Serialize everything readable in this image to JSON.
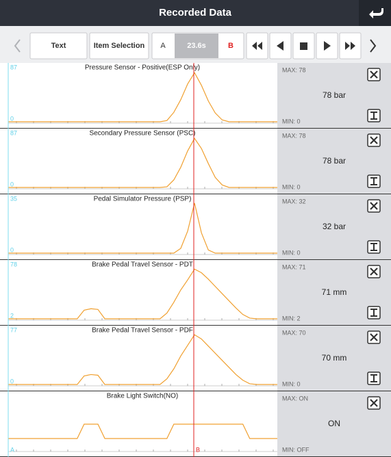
{
  "header": {
    "title": "Recorded Data"
  },
  "toolbar": {
    "text_button": "Text",
    "item_selection_button": "Item Selection",
    "cursor_a": "A",
    "time": "23.6s",
    "cursor_b": "B"
  },
  "cursor_labels": {
    "a": "A",
    "b": "B"
  },
  "panels": [
    {
      "title": "Pressure Sensor - Positive(ESP Only)",
      "scale": [
        0,
        87
      ],
      "max": "MAX: 78",
      "current": "78 bar",
      "min": "MIN: 0",
      "info_button": true,
      "trace": [
        0,
        0,
        0,
        0,
        0,
        0,
        0,
        0,
        0,
        0,
        0,
        0,
        0,
        0,
        0,
        0,
        0,
        0,
        0,
        0,
        0,
        0,
        0,
        2,
        15,
        35,
        60,
        78,
        58,
        33,
        14,
        3,
        0,
        0,
        0,
        0,
        0,
        0,
        0,
        0
      ]
    },
    {
      "title": "Secondary Pressure Sensor (PSC)",
      "scale": [
        0,
        87
      ],
      "max": "MAX: 78",
      "current": "78 bar",
      "min": "MIN: 0",
      "info_button": true,
      "trace": [
        0,
        0,
        0,
        0,
        0,
        0,
        0,
        0,
        0,
        0,
        0,
        0,
        0,
        0,
        0,
        0,
        0,
        0,
        0,
        0,
        0,
        0,
        0,
        1,
        12,
        32,
        58,
        78,
        62,
        38,
        16,
        4,
        0,
        0,
        0,
        0,
        0,
        0,
        0,
        0
      ]
    },
    {
      "title": "Pedal Simulator Pressure (PSP)",
      "scale": [
        0,
        35
      ],
      "max": "MAX: 32",
      "current": "32 bar",
      "min": "MIN: 0",
      "info_button": true,
      "trace": [
        0,
        0,
        0,
        0,
        0,
        0,
        0,
        0,
        0,
        0,
        0,
        0,
        0,
        0,
        0,
        0,
        0,
        0,
        0,
        0,
        0,
        0,
        0,
        0,
        0,
        3,
        14,
        32,
        13,
        2,
        0,
        0,
        0,
        0,
        0,
        0,
        0,
        0,
        0,
        0
      ]
    },
    {
      "title": "Brake Pedal Travel Sensor - PDT",
      "scale": [
        2,
        78
      ],
      "max": "MAX: 71",
      "current": "71 mm",
      "min": "MIN: 2",
      "info_button": true,
      "trace": [
        2,
        2,
        2,
        2,
        2,
        2,
        2,
        2,
        2,
        2,
        2,
        14,
        16,
        15,
        2,
        2,
        2,
        2,
        2,
        2,
        2,
        2,
        2,
        10,
        25,
        42,
        56,
        71,
        66,
        57,
        47,
        37,
        27,
        17,
        8,
        3,
        2,
        2,
        2,
        2
      ]
    },
    {
      "title": "Brake Pedal Travel Sensor - PDF",
      "scale": [
        0,
        77
      ],
      "max": "MAX: 70",
      "current": "70 mm",
      "min": "MIN: 0",
      "info_button": true,
      "trace": [
        0,
        0,
        0,
        0,
        0,
        0,
        0,
        0,
        0,
        0,
        0,
        12,
        14,
        13,
        0,
        0,
        0,
        0,
        0,
        0,
        0,
        0,
        0,
        8,
        22,
        40,
        55,
        70,
        64,
        54,
        44,
        34,
        24,
        14,
        6,
        1,
        0,
        0,
        0,
        0
      ]
    },
    {
      "title": "Brake Light Switch(NO)",
      "states": [
        "OFF",
        "ON"
      ],
      "max": "MAX: ON",
      "current": "ON",
      "min": "MIN: OFF",
      "info_button": false,
      "trace": [
        "OFF",
        "OFF",
        "OFF",
        "OFF",
        "OFF",
        "OFF",
        "OFF",
        "OFF",
        "OFF",
        "OFF",
        "OFF",
        "ON",
        "ON",
        "ON",
        "OFF",
        "OFF",
        "OFF",
        "OFF",
        "OFF",
        "OFF",
        "OFF",
        "OFF",
        "OFF",
        "OFF",
        "ON",
        "ON",
        "ON",
        "ON",
        "ON",
        "ON",
        "ON",
        "ON",
        "ON",
        "ON",
        "ON",
        "OFF",
        "OFF",
        "OFF",
        "OFF",
        "OFF"
      ]
    }
  ]
}
